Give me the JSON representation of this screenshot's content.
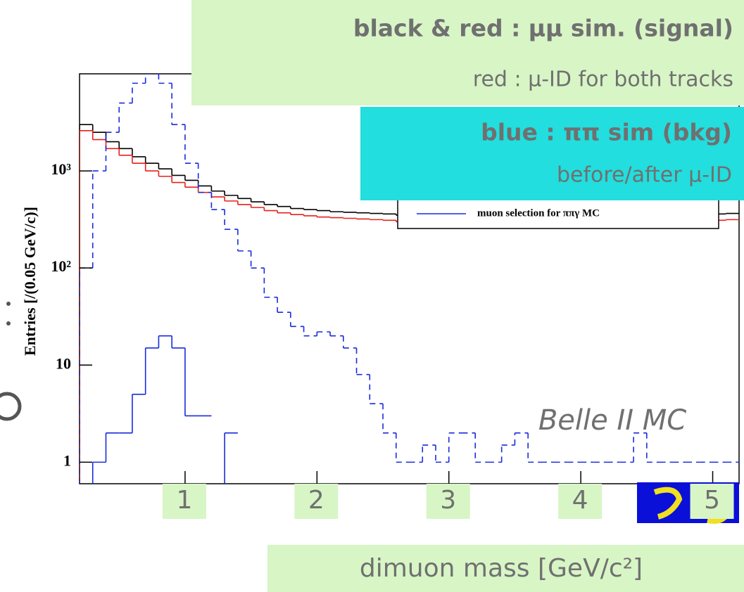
{
  "chart_data": {
    "type": "histogram",
    "ylabel": "Entries [/(0.05 GeV/c)]",
    "xlabel": "dimuon mass [GeV/c²]",
    "log_y": true,
    "xlim": [
      0.2,
      5.2
    ],
    "ylim": [
      0.6,
      10000
    ],
    "xticks": [
      1,
      2,
      3,
      4,
      5
    ],
    "yticks": [
      1,
      10,
      {
        "value": 100,
        "label": "10²"
      },
      {
        "value": 1000,
        "label": "10³"
      }
    ],
    "bins": [
      0.2,
      0.3,
      0.4,
      0.5,
      0.6,
      0.7,
      0.8,
      0.9,
      1.0,
      1.1,
      1.2,
      1.3,
      1.4,
      1.5,
      1.6,
      1.7,
      1.8,
      1.9,
      2.0,
      2.1,
      2.2,
      2.3,
      2.4,
      2.5,
      2.6,
      2.7,
      2.8,
      2.9,
      3.0,
      3.1,
      3.2,
      3.3,
      3.4,
      3.5,
      3.6,
      3.7,
      3.8,
      3.9,
      4.0,
      4.1,
      4.2,
      4.3,
      4.4,
      4.5,
      4.6,
      4.7,
      4.8,
      4.9,
      5.0,
      5.1,
      5.2
    ],
    "series": [
      {
        "color": "#000000",
        "style": "solid",
        "values": [
          3000,
          2500,
          2000,
          1700,
          1400,
          1200,
          1050,
          900,
          800,
          700,
          620,
          560,
          520,
          480,
          450,
          430,
          410,
          400,
          390,
          380,
          375,
          370,
          365,
          360,
          350,
          355,
          345,
          350,
          360,
          350,
          345,
          355,
          350,
          360,
          350,
          345,
          355,
          360,
          350,
          355,
          350,
          360,
          365,
          355,
          350,
          360,
          370,
          355,
          360,
          365
        ]
      },
      {
        "color": "#e8201a",
        "style": "solid",
        "values": [
          2600,
          2100,
          1700,
          1450,
          1200,
          1000,
          880,
          760,
          680,
          600,
          540,
          490,
          450,
          420,
          390,
          370,
          355,
          345,
          335,
          330,
          325,
          320,
          315,
          310,
          300,
          305,
          295,
          300,
          310,
          300,
          295,
          305,
          300,
          310,
          300,
          295,
          305,
          310,
          300,
          305,
          300,
          310,
          315,
          305,
          300,
          310,
          320,
          305,
          310,
          315
        ]
      },
      {
        "color": "#1a2bdc",
        "style": "dashed",
        "values": [
          100,
          1000,
          2500,
          5000,
          8000,
          10000,
          8000,
          3000,
          1200,
          600,
          400,
          250,
          150,
          100,
          50,
          35,
          25,
          20,
          22,
          20,
          15,
          8,
          4,
          2,
          1,
          1,
          1.5,
          1,
          2,
          2,
          1,
          1,
          1.5,
          2,
          1,
          1,
          1,
          1,
          1,
          1,
          1,
          1,
          2,
          1,
          1,
          1,
          1,
          1,
          1,
          1
        ]
      },
      {
        "color": "#1a2bdc",
        "style": "solid",
        "values": [
          null,
          1,
          2,
          2,
          5,
          15,
          20,
          15,
          3,
          3,
          null,
          2,
          null,
          null,
          null,
          null,
          null,
          null,
          null,
          null,
          null,
          null,
          null,
          null,
          null,
          null,
          null,
          null,
          null,
          null,
          null,
          null,
          null,
          null,
          null,
          null,
          null,
          null,
          null,
          null,
          null,
          null,
          null,
          null,
          null,
          null,
          null,
          null,
          null,
          null
        ]
      }
    ],
    "legend_label": "muon selection for  ππγ MC",
    "annotation": "Belle II MC",
    "notes": [
      "black & red : μμ sim. (signal)",
      "red : μ-ID for both tracks",
      "blue : ππ sim (bkg)",
      "before/after μ-ID"
    ]
  }
}
